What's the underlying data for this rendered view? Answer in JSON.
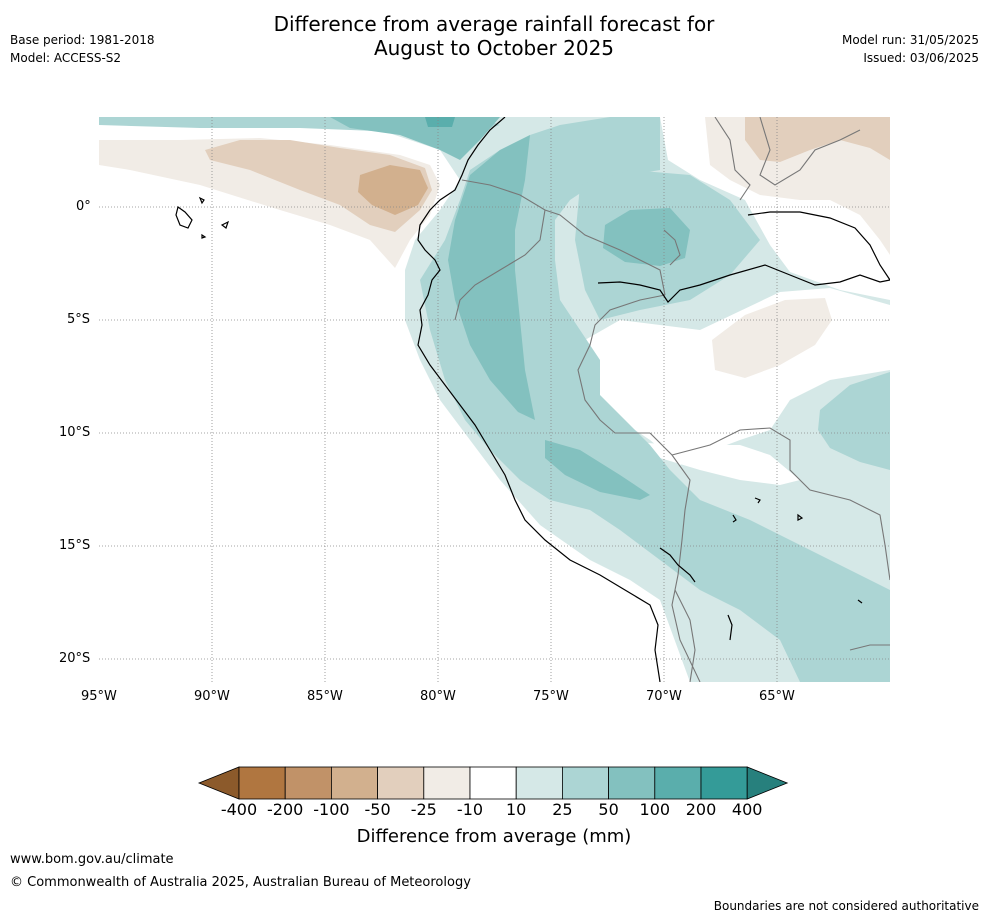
{
  "header": {
    "base_period": "Base period: 1981-2018",
    "model": "Model: ACCESS-S2",
    "title_line1": "Difference from average rainfall forecast for",
    "title_line2": "August to October 2025",
    "model_run": "Model run: 31/05/2025",
    "issued": "Issued: 03/06/2025"
  },
  "map": {
    "lat_labels": [
      "0°",
      "5°S",
      "10°S",
      "15°S",
      "20°S"
    ],
    "lon_labels": [
      "95°W",
      "90°W",
      "85°W",
      "80°W",
      "75°W",
      "70°W",
      "65°W"
    ]
  },
  "colorbar": {
    "ticks": [
      "-400",
      "-200",
      "-100",
      "-50",
      "-25",
      "-10",
      "10",
      "25",
      "50",
      "100",
      "200",
      "400"
    ],
    "colors": [
      "#8c5a2b",
      "#b07640",
      "#c19268",
      "#d2b08e",
      "#e2cfbd",
      "#f1ece6",
      "#ffffff",
      "#d5e8e7",
      "#acd5d4",
      "#83c1bf",
      "#5aaeac",
      "#349b98",
      "#27807d"
    ],
    "label": "Difference from average (mm)"
  },
  "footer": {
    "website": "www.bom.gov.au/climate",
    "copyright": "© Commonwealth of Australia 2025, Australian Bureau of Meteorology",
    "disclaimer": "Boundaries are not considered authoritative"
  }
}
